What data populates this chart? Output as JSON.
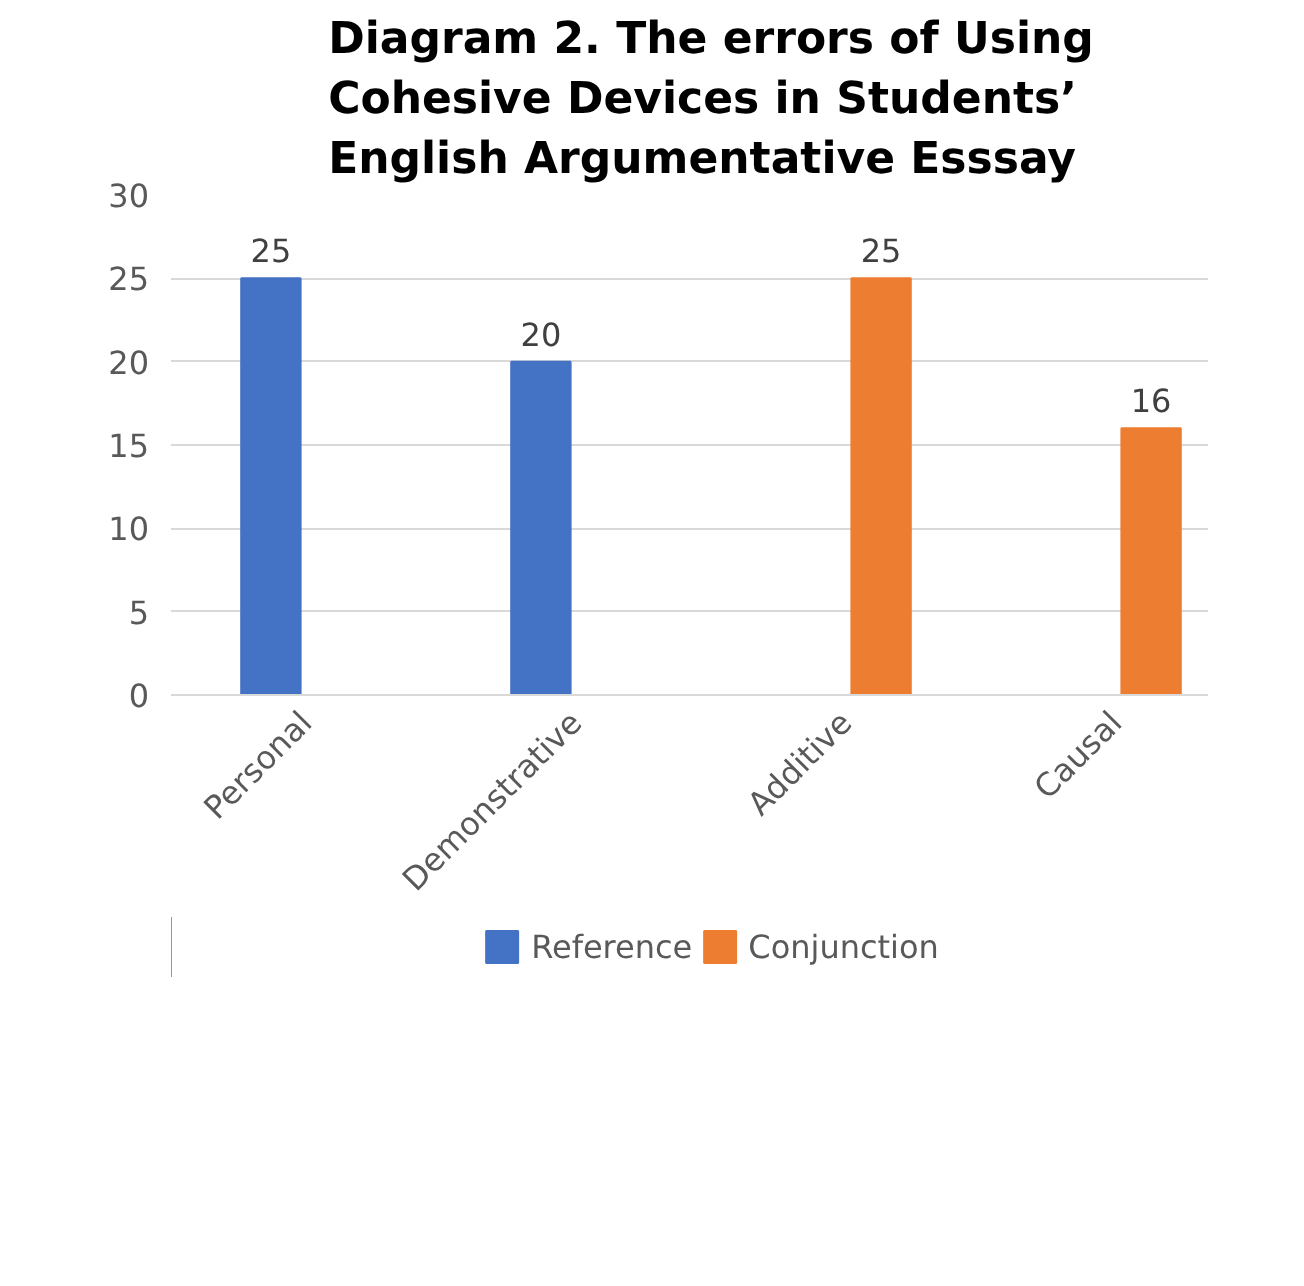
{
  "chart_data": {
    "type": "bar",
    "title": "Diagram 2. The errors of Using Cohesive Devices in Students’ English Argumentative Esssay",
    "categories": [
      "Personal",
      "Demonstrative",
      "Additive",
      "Causal"
    ],
    "series": [
      {
        "name": "Reference",
        "color": "#4472c4",
        "values": [
          25,
          20,
          null,
          null
        ]
      },
      {
        "name": "Conjunction",
        "color": "#ed7d31",
        "values": [
          null,
          null,
          25,
          16
        ]
      }
    ],
    "ylim": [
      0,
      30
    ],
    "yticks": [
      0,
      5,
      10,
      15,
      20,
      25,
      30
    ],
    "grid": "y",
    "legend": "bottom",
    "data_labels": true
  }
}
